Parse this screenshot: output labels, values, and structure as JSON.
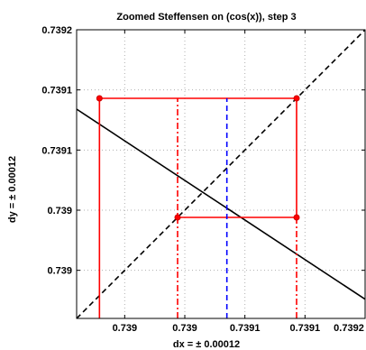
{
  "chart_data": {
    "type": "line",
    "title": "Zoomed Steffensen on (cos(x)), step 3",
    "xlabel": "dx = ± 0.00012",
    "ylabel": "dy = ± 0.00012",
    "xlim": [
      0.73896,
      0.7392
    ],
    "ylim": [
      0.73896,
      0.7392
    ],
    "x_ticks": [
      {
        "value": 0.739,
        "label": "0.739"
      },
      {
        "value": 0.73905,
        "label": "0.739"
      },
      {
        "value": 0.7391,
        "label": "0.7391"
      },
      {
        "value": 0.73915,
        "label": "0.7391"
      },
      {
        "value": 0.7392,
        "label": "0.7392"
      }
    ],
    "y_ticks": [
      {
        "value": 0.739,
        "label": "0.739"
      },
      {
        "value": 0.73905,
        "label": "0.739"
      },
      {
        "value": 0.7391,
        "label": "0.7391"
      },
      {
        "value": 0.73915,
        "label": "0.7391"
      },
      {
        "value": 0.7392,
        "label": "0.7392"
      }
    ],
    "grid": true,
    "series": [
      {
        "kind": "diagonal",
        "color": "#000000",
        "style": "dashed",
        "x": [
          0.73896,
          0.7392
        ],
        "y": [
          0.73896,
          0.7392
        ]
      },
      {
        "kind": "cos-curve",
        "color": "#000000",
        "style": "solid",
        "x": [
          0.73896,
          0.7392
        ],
        "y": [
          0.739134,
          0.738976
        ]
      },
      {
        "kind": "iteration-path",
        "color": "#ff0000",
        "style": "solid",
        "x": [
          0.738979,
          0.738979,
          0.739143,
          0.739143,
          0.739044
        ],
        "y": [
          0.73896,
          0.739143,
          0.739143,
          0.739044,
          0.739044
        ]
      },
      {
        "kind": "projection-1",
        "color": "#ff0000",
        "style": "dashdot",
        "x": [
          0.739044,
          0.739044
        ],
        "y": [
          0.73896,
          0.739143
        ]
      },
      {
        "kind": "projection-2",
        "color": "#ff0000",
        "style": "dashdot",
        "x": [
          0.739143,
          0.739143
        ],
        "y": [
          0.73896,
          0.739044
        ]
      },
      {
        "kind": "root-estimate",
        "color": "#0000ff",
        "style": "dashed",
        "x": [
          0.739085,
          0.739085
        ],
        "y": [
          0.73896,
          0.739143
        ]
      }
    ],
    "points": [
      {
        "x": 0.738979,
        "y": 0.739143,
        "color": "#ff0000"
      },
      {
        "x": 0.739143,
        "y": 0.739143,
        "color": "#ff0000"
      },
      {
        "x": 0.739143,
        "y": 0.739044,
        "color": "#ff0000"
      },
      {
        "x": 0.739044,
        "y": 0.739044,
        "color": "#ff0000"
      }
    ]
  }
}
